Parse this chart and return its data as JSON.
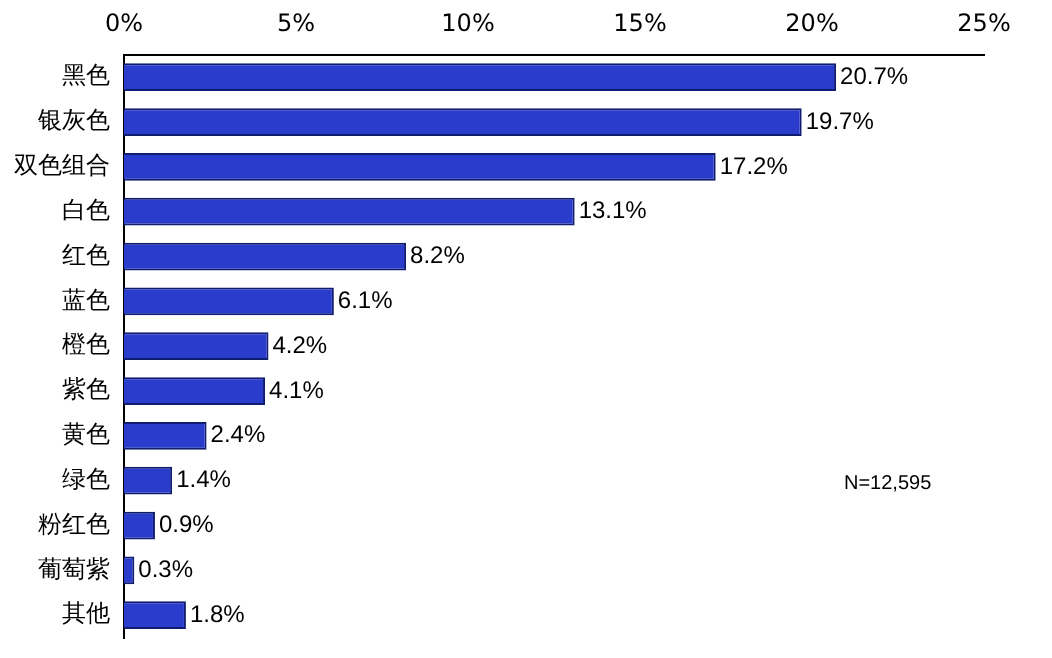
{
  "chart_data": {
    "type": "bar",
    "orientation": "horizontal",
    "categories": [
      "黑色",
      "银灰色",
      "双色组合",
      "白色",
      "红色",
      "蓝色",
      "橙色",
      "紫色",
      "黄色",
      "绿色",
      "粉红色",
      "葡萄紫",
      "其他"
    ],
    "values": [
      20.7,
      19.7,
      17.2,
      13.1,
      8.2,
      6.1,
      4.2,
      4.1,
      2.4,
      1.4,
      0.9,
      0.3,
      1.8
    ],
    "value_labels": [
      "20.7%",
      "19.7%",
      "17.2%",
      "13.1%",
      "8.2%",
      "6.1%",
      "4.2%",
      "4.1%",
      "2.4%",
      "1.4%",
      "0.9%",
      "0.3%",
      "1.8%"
    ],
    "color": "#2a3ccc",
    "xlim": [
      0,
      25
    ],
    "xticks": [
      {
        "value": 0,
        "label": "0%"
      },
      {
        "value": 5,
        "label": "5%"
      },
      {
        "value": 10,
        "label": "10%"
      },
      {
        "value": 15,
        "label": "15%"
      },
      {
        "value": 20,
        "label": "20%"
      },
      {
        "value": 25,
        "label": "25%"
      }
    ],
    "grid": false,
    "legend": false,
    "annotations": [
      "N=12,595"
    ]
  }
}
